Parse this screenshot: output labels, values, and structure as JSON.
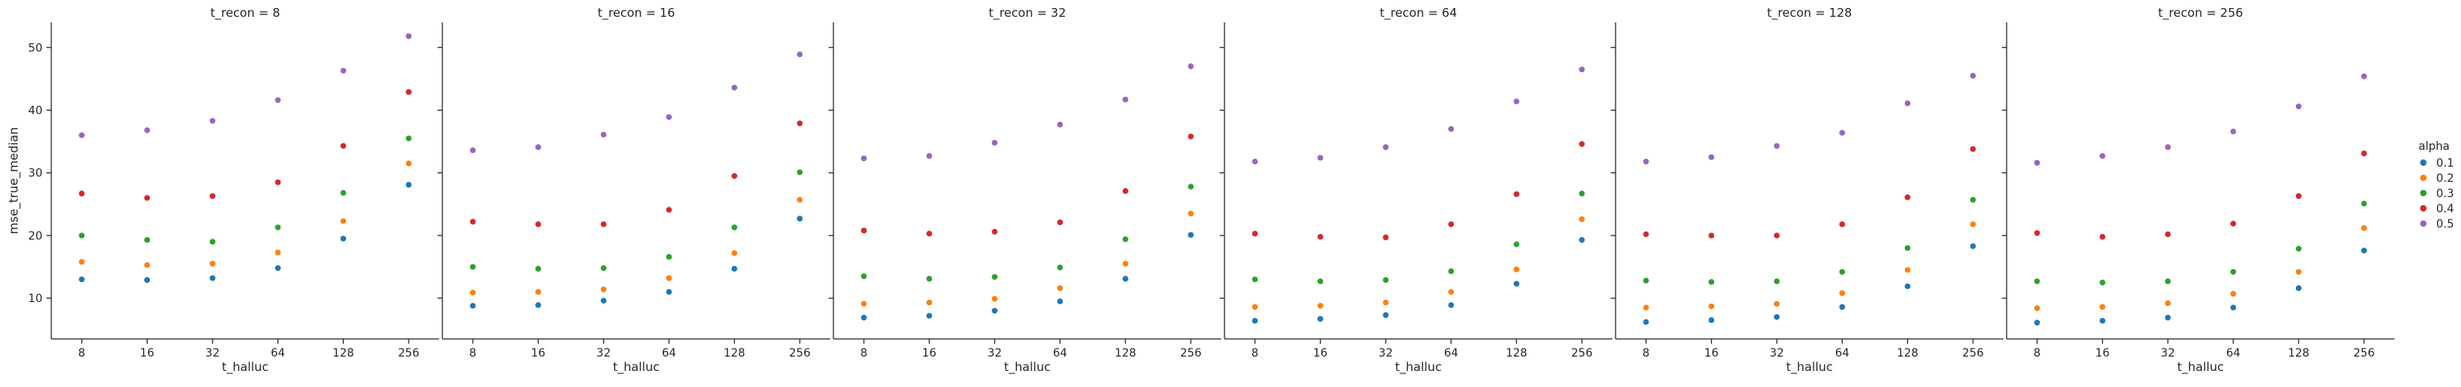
{
  "colors": {
    "0.1": "#1f77b4",
    "0.2": "#ff7f0e",
    "0.3": "#2ca02c",
    "0.4": "#d62728",
    "0.5": "#9467bd"
  },
  "legend": {
    "title": "alpha",
    "entries": [
      "0.1",
      "0.2",
      "0.3",
      "0.4",
      "0.5"
    ]
  },
  "chart_data": [
    {
      "type": "scatter",
      "title": "t_recon = 8",
      "xlabel": "t_halluc",
      "ylabel": "mse_true_median",
      "categories": [
        "8",
        "16",
        "32",
        "64",
        "128",
        "256"
      ],
      "ylim": [
        3.5,
        54
      ],
      "yticks": [
        10,
        20,
        30,
        40,
        50
      ],
      "series": [
        {
          "name": "0.1",
          "values": [
            13.0,
            12.9,
            13.2,
            14.8,
            19.5,
            28.1
          ]
        },
        {
          "name": "0.2",
          "values": [
            15.8,
            15.3,
            15.5,
            17.3,
            22.3,
            31.5
          ]
        },
        {
          "name": "0.3",
          "values": [
            20.0,
            19.3,
            19.0,
            21.3,
            26.8,
            35.5
          ]
        },
        {
          "name": "0.4",
          "values": [
            26.7,
            26.0,
            26.3,
            28.5,
            34.3,
            42.9
          ]
        },
        {
          "name": "0.5",
          "values": [
            36.0,
            36.8,
            38.3,
            41.6,
            46.3,
            51.8
          ]
        }
      ]
    },
    {
      "type": "scatter",
      "title": "t_recon = 16",
      "xlabel": "t_halluc",
      "ylabel": "",
      "categories": [
        "8",
        "16",
        "32",
        "64",
        "128",
        "256"
      ],
      "ylim": [
        3.5,
        54
      ],
      "yticks": [
        10,
        20,
        30,
        40,
        50
      ],
      "series": [
        {
          "name": "0.1",
          "values": [
            8.8,
            8.9,
            9.6,
            11.0,
            14.7,
            22.7
          ]
        },
        {
          "name": "0.2",
          "values": [
            10.9,
            11.0,
            11.4,
            13.2,
            17.2,
            25.7
          ]
        },
        {
          "name": "0.3",
          "values": [
            15.0,
            14.7,
            14.8,
            16.6,
            21.3,
            30.1
          ]
        },
        {
          "name": "0.4",
          "values": [
            22.2,
            21.8,
            21.8,
            24.1,
            29.5,
            37.9
          ]
        },
        {
          "name": "0.5",
          "values": [
            33.6,
            34.1,
            36.1,
            38.9,
            43.6,
            48.9
          ]
        }
      ]
    },
    {
      "type": "scatter",
      "title": "t_recon = 32",
      "xlabel": "t_halluc",
      "ylabel": "",
      "categories": [
        "8",
        "16",
        "32",
        "64",
        "128",
        "256"
      ],
      "ylim": [
        3.5,
        54
      ],
      "yticks": [
        10,
        20,
        30,
        40,
        50
      ],
      "series": [
        {
          "name": "0.1",
          "values": [
            6.9,
            7.2,
            8.0,
            9.5,
            13.1,
            20.1
          ]
        },
        {
          "name": "0.2",
          "values": [
            9.1,
            9.3,
            9.9,
            11.6,
            15.5,
            23.5
          ]
        },
        {
          "name": "0.3",
          "values": [
            13.5,
            13.1,
            13.4,
            14.9,
            19.4,
            27.8
          ]
        },
        {
          "name": "0.4",
          "values": [
            20.8,
            20.3,
            20.6,
            22.1,
            27.1,
            35.8
          ]
        },
        {
          "name": "0.5",
          "values": [
            32.3,
            32.7,
            34.8,
            37.7,
            41.7,
            47.0
          ]
        }
      ]
    },
    {
      "type": "scatter",
      "title": "t_recon = 64",
      "xlabel": "t_halluc",
      "ylabel": "",
      "categories": [
        "8",
        "16",
        "32",
        "64",
        "128",
        "256"
      ],
      "ylim": [
        3.5,
        54
      ],
      "yticks": [
        10,
        20,
        30,
        40,
        50
      ],
      "series": [
        {
          "name": "0.1",
          "values": [
            6.4,
            6.7,
            7.3,
            8.9,
            12.3,
            19.3
          ]
        },
        {
          "name": "0.2",
          "values": [
            8.6,
            8.8,
            9.3,
            11.0,
            14.6,
            22.6
          ]
        },
        {
          "name": "0.3",
          "values": [
            13.0,
            12.7,
            12.9,
            14.3,
            18.6,
            26.7
          ]
        },
        {
          "name": "0.4",
          "values": [
            20.3,
            19.8,
            19.7,
            21.8,
            26.6,
            34.6
          ]
        },
        {
          "name": "0.5",
          "values": [
            31.8,
            32.4,
            34.1,
            37.0,
            41.4,
            46.5
          ]
        }
      ]
    },
    {
      "type": "scatter",
      "title": "t_recon = 128",
      "xlabel": "t_halluc",
      "ylabel": "",
      "categories": [
        "8",
        "16",
        "32",
        "64",
        "128",
        "256"
      ],
      "ylim": [
        3.5,
        54
      ],
      "yticks": [
        10,
        20,
        30,
        40,
        50
      ],
      "series": [
        {
          "name": "0.1",
          "values": [
            6.2,
            6.5,
            7.0,
            8.6,
            11.9,
            18.3
          ]
        },
        {
          "name": "0.2",
          "values": [
            8.5,
            8.7,
            9.1,
            10.8,
            14.5,
            21.8
          ]
        },
        {
          "name": "0.3",
          "values": [
            12.8,
            12.6,
            12.7,
            14.2,
            18.0,
            25.7
          ]
        },
        {
          "name": "0.4",
          "values": [
            20.2,
            20.0,
            20.0,
            21.8,
            26.1,
            33.8
          ]
        },
        {
          "name": "0.5",
          "values": [
            31.8,
            32.5,
            34.3,
            36.4,
            41.1,
            45.5
          ]
        }
      ]
    },
    {
      "type": "scatter",
      "title": "t_recon = 256",
      "xlabel": "t_halluc",
      "ylabel": "",
      "categories": [
        "8",
        "16",
        "32",
        "64",
        "128",
        "256"
      ],
      "ylim": [
        3.5,
        54
      ],
      "yticks": [
        10,
        20,
        30,
        40,
        50
      ],
      "series": [
        {
          "name": "0.1",
          "values": [
            6.1,
            6.4,
            6.9,
            8.5,
            11.6,
            17.6
          ]
        },
        {
          "name": "0.2",
          "values": [
            8.4,
            8.6,
            9.2,
            10.7,
            14.2,
            21.2
          ]
        },
        {
          "name": "0.3",
          "values": [
            12.7,
            12.5,
            12.7,
            14.2,
            17.9,
            25.1
          ]
        },
        {
          "name": "0.4",
          "values": [
            20.4,
            19.8,
            20.2,
            21.9,
            26.3,
            33.1
          ]
        },
        {
          "name": "0.5",
          "values": [
            31.6,
            32.7,
            34.1,
            36.6,
            40.6,
            45.4
          ]
        }
      ]
    }
  ]
}
